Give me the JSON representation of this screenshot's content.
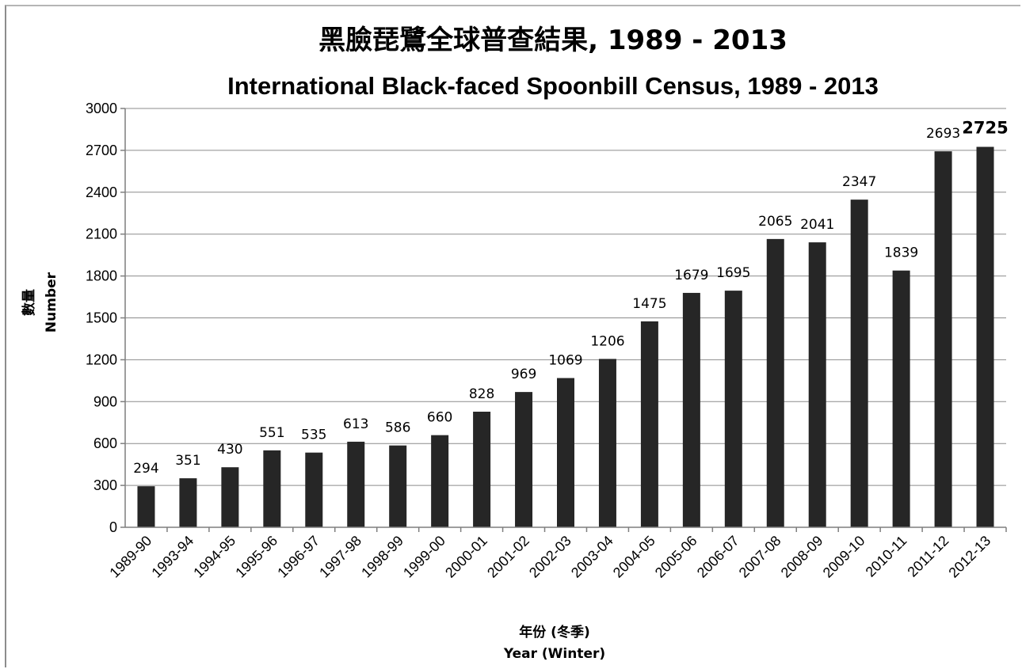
{
  "chart_data": {
    "type": "bar",
    "title": "黑臉琵鷺全球普查結果, 1989 - 2013",
    "subtitle": "International Black-faced Spoonbill Census, 1989 - 2013",
    "xlabel": "年份 (冬季)",
    "xlabel_en": "Year (Winter)",
    "ylabel": "數量",
    "ylabel_en": "Number",
    "ylim": [
      0,
      3000
    ],
    "yticks": [
      0,
      300,
      600,
      900,
      1200,
      1500,
      1800,
      2100,
      2400,
      2700,
      3000
    ],
    "grid": true,
    "bar_color": "#262626",
    "categories": [
      "1989-90",
      "1993-94",
      "1994-95",
      "1995-96",
      "1996-97",
      "1997-98",
      "1998-99",
      "1999-00",
      "2000-01",
      "2001-02",
      "2002-03",
      "2003-04",
      "2004-05",
      "2005-06",
      "2006-07",
      "2007-08",
      "2008-09",
      "2009-10",
      "2010-11",
      "2011-12",
      "2012-13"
    ],
    "values": [
      294,
      351,
      430,
      551,
      535,
      613,
      586,
      660,
      828,
      969,
      1069,
      1206,
      1475,
      1679,
      1695,
      2065,
      2041,
      2347,
      1839,
      2693,
      2725
    ]
  }
}
